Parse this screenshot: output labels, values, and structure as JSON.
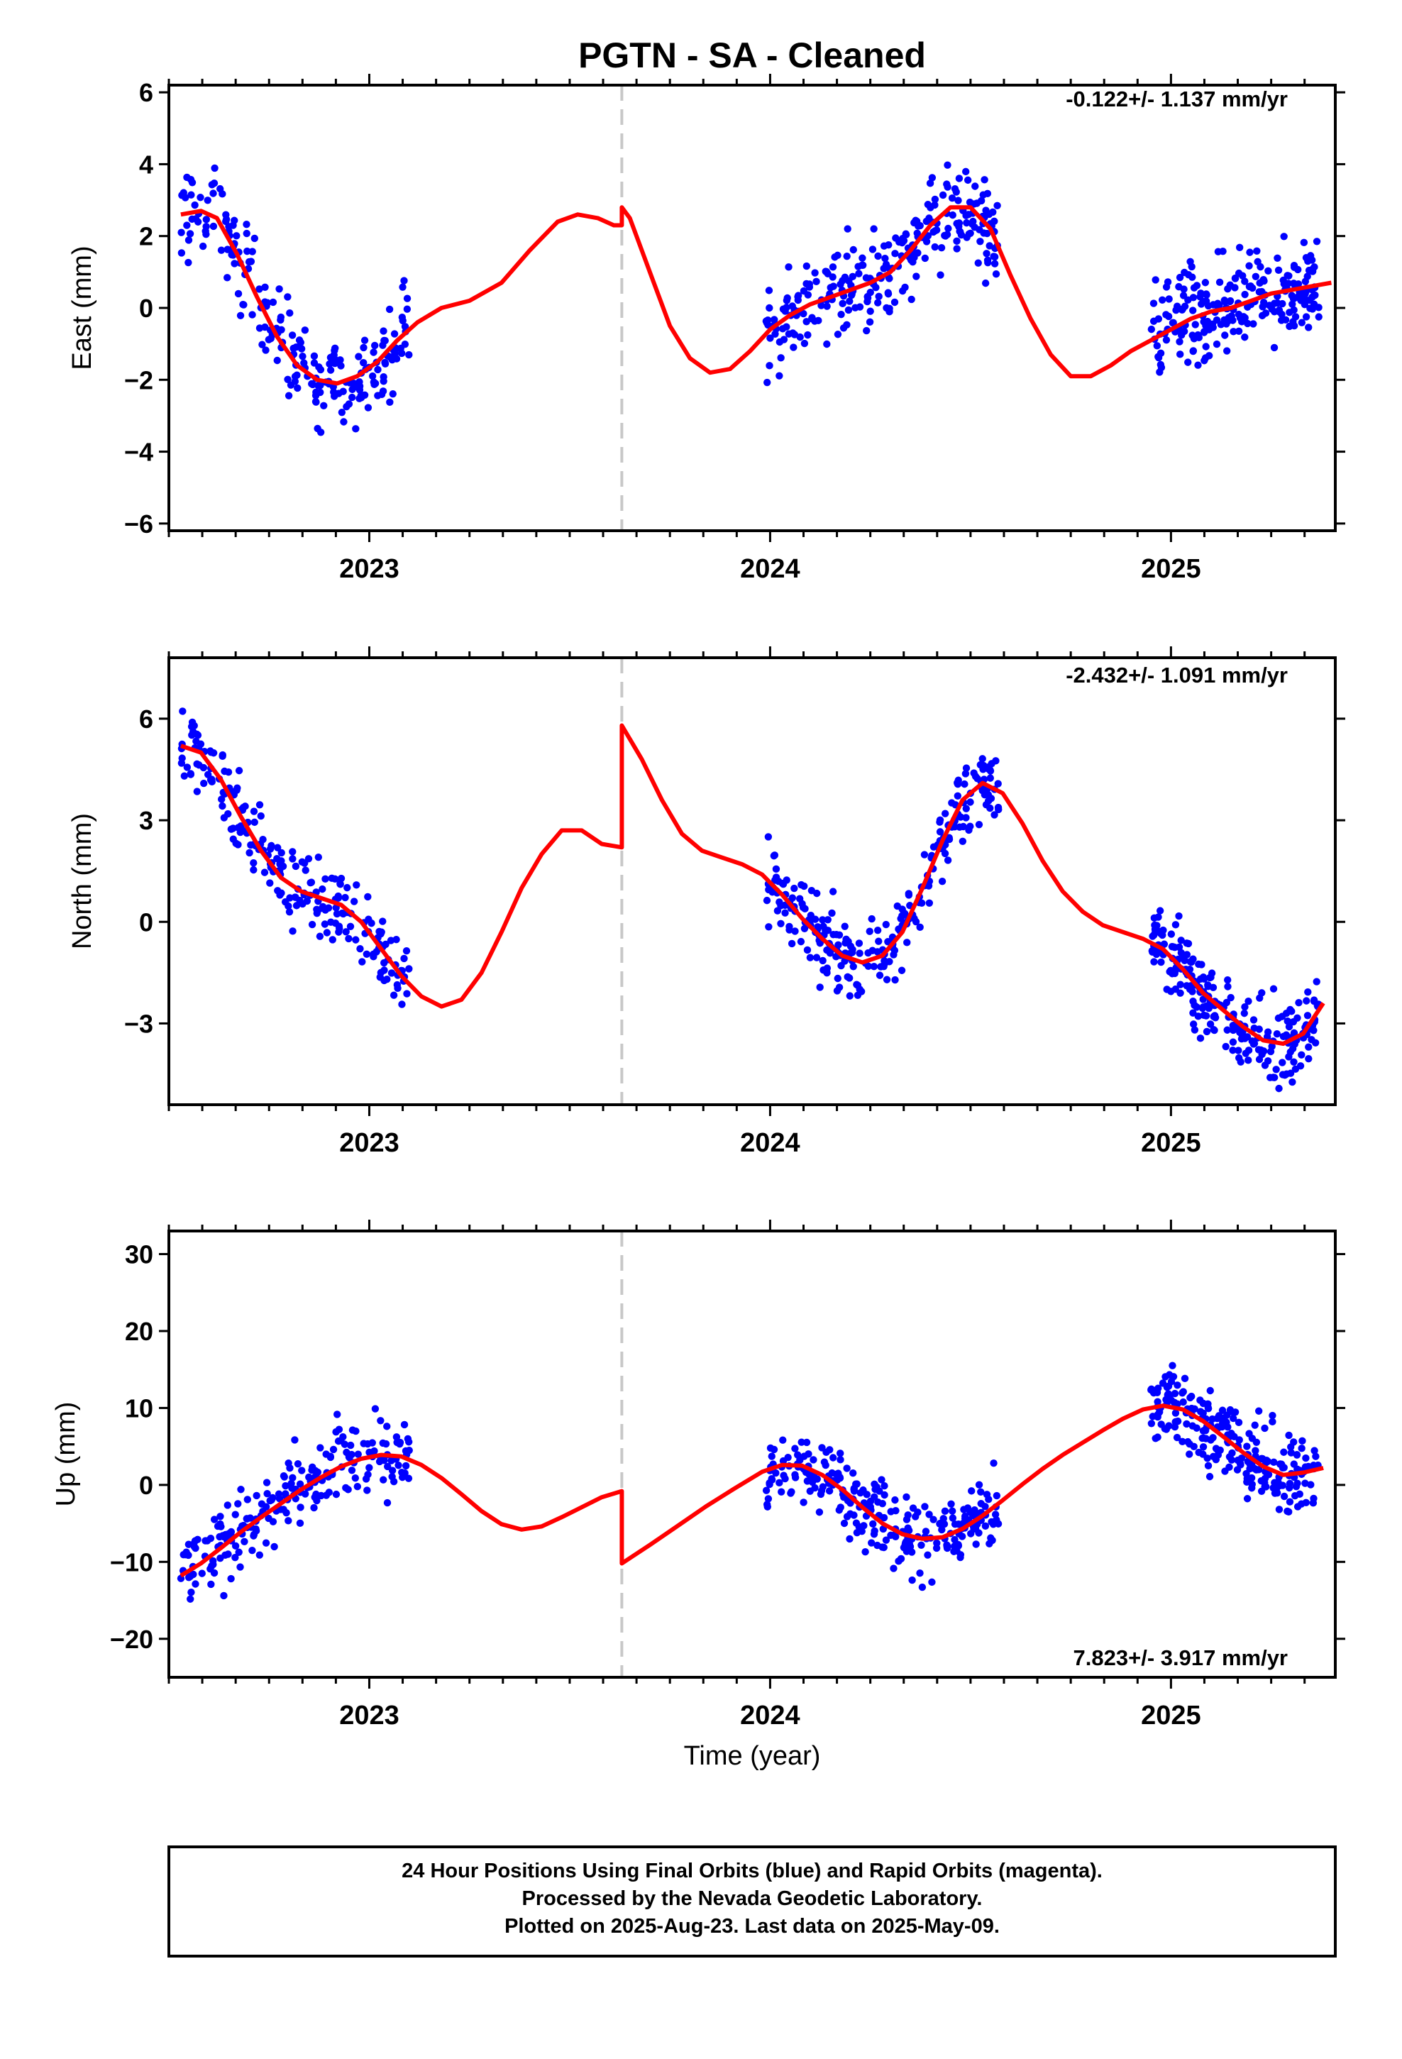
{
  "figure": {
    "title": "PGTN  - SA - Cleaned",
    "xlabel": "Time (year)",
    "footer": [
      "24 Hour Positions Using Final Orbits (blue) and Rapid Orbits (magenta).",
      "Processed by the Nevada Geodetic Laboratory.",
      "Plotted on 2025-Aug-23. Last data on 2025-May-09."
    ],
    "colors": {
      "points": "#0000ff",
      "fit": "#ff0000",
      "equipment_change": "#c8c8c8",
      "axes": "#000000"
    }
  },
  "chart_data": [
    {
      "type": "scatter",
      "ylabel": "East (mm)",
      "rate": "-0.122+/- 1.137 mm/yr",
      "xlim": [
        2022.5,
        2025.41
      ],
      "ylim": [
        -6.2,
        6.2
      ],
      "yticks": [
        -6,
        -4,
        -2,
        0,
        2,
        4,
        6
      ],
      "ytick_labels": [
        "−6",
        "−4",
        "−2",
        "0",
        "2",
        "4",
        "6"
      ],
      "xticks": [
        2023,
        2024,
        2025
      ],
      "xtick_labels": [
        "2023",
        "2024",
        "2025"
      ],
      "equipment_change": 2023.63,
      "fit_x": [
        2022.53,
        2022.58,
        2022.62,
        2022.67,
        2022.72,
        2022.77,
        2022.82,
        2022.87,
        2022.92,
        2022.97,
        2023.02,
        2023.07,
        2023.12,
        2023.18,
        2023.25,
        2023.33,
        2023.4,
        2023.47,
        2023.52,
        2023.57,
        2023.61,
        2023.63,
        2023.63,
        2023.65,
        2023.7,
        2023.75,
        2023.8,
        2023.85,
        2023.9,
        2023.95,
        2024.0,
        2024.05,
        2024.1,
        2024.15,
        2024.2,
        2024.25,
        2024.3,
        2024.35,
        2024.4,
        2024.45,
        2024.5,
        2024.55,
        2024.6,
        2024.65,
        2024.7,
        2024.75,
        2024.8,
        2024.85,
        2024.9,
        2024.95,
        2025.0,
        2025.05,
        2025.1,
        2025.15,
        2025.2,
        2025.25,
        2025.3,
        2025.35,
        2025.4
      ],
      "fit_y": [
        2.6,
        2.7,
        2.5,
        1.5,
        0.3,
        -0.8,
        -1.6,
        -2.0,
        -2.1,
        -1.9,
        -1.5,
        -0.9,
        -0.4,
        0.0,
        0.2,
        0.7,
        1.6,
        2.4,
        2.6,
        2.5,
        2.3,
        2.3,
        2.8,
        2.5,
        1.0,
        -0.5,
        -1.4,
        -1.8,
        -1.7,
        -1.2,
        -0.6,
        -0.2,
        0.1,
        0.3,
        0.5,
        0.7,
        1.0,
        1.6,
        2.3,
        2.8,
        2.8,
        2.2,
        0.9,
        -0.3,
        -1.3,
        -1.9,
        -1.9,
        -1.6,
        -1.2,
        -0.9,
        -0.6,
        -0.3,
        -0.1,
        0.0,
        0.2,
        0.4,
        0.5,
        0.6,
        0.7
      ]
    },
    {
      "type": "scatter",
      "ylabel": "North (mm)",
      "rate": "-2.432+/- 1.091 mm/yr",
      "xlim": [
        2022.5,
        2025.41
      ],
      "ylim": [
        -5.4,
        7.8
      ],
      "yticks": [
        -3,
        0,
        3,
        6
      ],
      "ytick_labels": [
        "−3",
        "0",
        "3",
        "6"
      ],
      "xticks": [
        2023,
        2024,
        2025
      ],
      "xtick_labels": [
        "2023",
        "2024",
        "2025"
      ],
      "equipment_change": 2023.63,
      "fit_x": [
        2022.53,
        2022.58,
        2022.63,
        2022.68,
        2022.73,
        2022.78,
        2022.83,
        2022.88,
        2022.93,
        2022.98,
        2023.03,
        2023.08,
        2023.13,
        2023.18,
        2023.23,
        2023.28,
        2023.33,
        2023.38,
        2023.43,
        2023.48,
        2023.53,
        2023.58,
        2023.63,
        2023.63,
        2023.68,
        2023.73,
        2023.78,
        2023.83,
        2023.88,
        2023.93,
        2023.98,
        2024.03,
        2024.08,
        2024.13,
        2024.18,
        2024.23,
        2024.28,
        2024.33,
        2024.38,
        2024.43,
        2024.48,
        2024.53,
        2024.58,
        2024.63,
        2024.68,
        2024.73,
        2024.78,
        2024.83,
        2024.88,
        2024.93,
        2024.98,
        2025.03,
        2025.08,
        2025.13,
        2025.18,
        2025.23,
        2025.28,
        2025.33,
        2025.38
      ],
      "fit_y": [
        5.2,
        5.0,
        4.2,
        3.1,
        2.1,
        1.3,
        0.9,
        0.7,
        0.5,
        0.0,
        -0.8,
        -1.6,
        -2.2,
        -2.5,
        -2.3,
        -1.5,
        -0.3,
        1.0,
        2.0,
        2.7,
        2.7,
        2.3,
        2.2,
        5.8,
        4.8,
        3.6,
        2.6,
        2.1,
        1.9,
        1.7,
        1.4,
        0.8,
        0.1,
        -0.5,
        -1.0,
        -1.2,
        -1.0,
        -0.3,
        1.0,
        2.4,
        3.6,
        4.1,
        3.8,
        2.9,
        1.8,
        0.9,
        0.3,
        -0.1,
        -0.3,
        -0.5,
        -0.8,
        -1.4,
        -2.1,
        -2.6,
        -3.1,
        -3.5,
        -3.6,
        -3.3,
        -2.4
      ]
    },
    {
      "type": "scatter",
      "ylabel": "Up (mm)",
      "rate": "7.823+/- 3.917 mm/yr",
      "xlim": [
        2022.5,
        2025.41
      ],
      "ylim": [
        -25,
        33
      ],
      "yticks": [
        -20,
        -10,
        0,
        10,
        20,
        30
      ],
      "ytick_labels": [
        "−20",
        "−10",
        "0",
        "10",
        "20",
        "30"
      ],
      "xticks": [
        2023,
        2024,
        2025
      ],
      "xtick_labels": [
        "2023",
        "2024",
        "2025"
      ],
      "equipment_change": 2023.63,
      "fit_x": [
        2022.53,
        2022.58,
        2022.63,
        2022.68,
        2022.73,
        2022.78,
        2022.83,
        2022.88,
        2022.93,
        2022.98,
        2023.03,
        2023.08,
        2023.13,
        2023.18,
        2023.23,
        2023.28,
        2023.33,
        2023.38,
        2023.43,
        2023.48,
        2023.53,
        2023.58,
        2023.63,
        2023.63,
        2023.7,
        2023.77,
        2023.84,
        2023.91,
        2023.98,
        2024.03,
        2024.08,
        2024.13,
        2024.18,
        2024.23,
        2024.28,
        2024.33,
        2024.38,
        2024.43,
        2024.48,
        2024.53,
        2024.58,
        2024.63,
        2024.68,
        2024.73,
        2024.78,
        2024.83,
        2024.88,
        2024.93,
        2024.98,
        2025.03,
        2025.08,
        2025.13,
        2025.18,
        2025.23,
        2025.28,
        2025.33,
        2025.38
      ],
      "fit_y": [
        -11.8,
        -10.2,
        -8.2,
        -6.1,
        -4.2,
        -2.4,
        -0.6,
        1.0,
        2.4,
        3.4,
        3.9,
        3.7,
        2.6,
        0.9,
        -1.2,
        -3.4,
        -5.1,
        -5.8,
        -5.4,
        -4.2,
        -2.9,
        -1.6,
        -0.8,
        -10.2,
        -7.8,
        -5.3,
        -2.8,
        -0.5,
        1.7,
        2.6,
        2.5,
        1.3,
        -0.6,
        -2.9,
        -5.0,
        -6.4,
        -7.0,
        -6.8,
        -5.7,
        -4.0,
        -2.0,
        0.1,
        2.1,
        3.9,
        5.5,
        7.1,
        8.6,
        9.8,
        10.3,
        9.8,
        8.3,
        6.3,
        4.2,
        2.4,
        1.3,
        1.6,
        2.2
      ]
    }
  ]
}
